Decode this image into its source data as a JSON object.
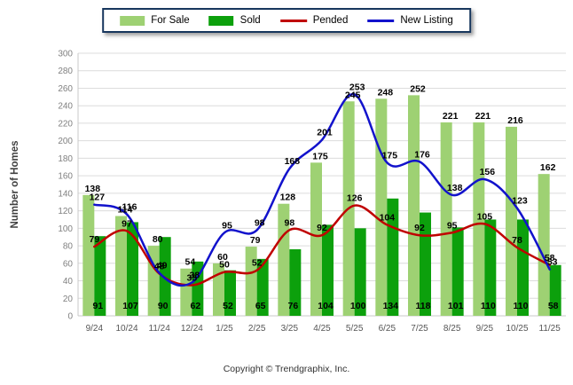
{
  "legend": {
    "items": [
      {
        "label": "For Sale",
        "type": "swatch",
        "color": "#9ed173"
      },
      {
        "label": "Sold",
        "type": "swatch",
        "color": "#0ca00c"
      },
      {
        "label": "Pended",
        "type": "line",
        "color": "#c00000"
      },
      {
        "label": "New Listing",
        "type": "line",
        "color": "#1212cc"
      }
    ]
  },
  "y_axis_title": "Number of Homes",
  "footer": "Copyright © Trendgraphix, Inc.",
  "colors": {
    "for_sale_bar": "#9ed173",
    "sold_bar": "#0ca00c",
    "pended_line": "#c00000",
    "new_listing_line": "#1212cc",
    "gridline": "#dcdcdc",
    "axis_line": "#c8c8c8",
    "y_tick_label": "#808080",
    "x_tick_label": "#555555",
    "data_label": "#000000"
  },
  "chart_data": {
    "type": "bar",
    "subtype": "grouped-bars-with-smooth-lines",
    "title": "",
    "xlabel": "",
    "ylabel": "Number of Homes",
    "ylim": [
      0,
      300
    ],
    "ytick_step": 20,
    "grid": true,
    "legend_position": "top-center",
    "categories": [
      "9/24",
      "10/24",
      "11/24",
      "12/24",
      "1/25",
      "2/25",
      "3/25",
      "4/25",
      "5/25",
      "6/25",
      "7/25",
      "8/25",
      "9/25",
      "10/25",
      "11/25"
    ],
    "series": [
      {
        "name": "For Sale",
        "type": "bar",
        "color": "#9ed173",
        "label_position": "above-bar",
        "values": [
          138,
          114,
          80,
          54,
          60,
          79,
          128,
          175,
          245,
          248,
          252,
          221,
          221,
          216,
          162
        ]
      },
      {
        "name": "Sold",
        "type": "bar",
        "color": "#0ca00c",
        "label_position": "inside-bar-bottom",
        "values": [
          91,
          107,
          90,
          62,
          52,
          65,
          76,
          104,
          100,
          134,
          118,
          101,
          110,
          110,
          58
        ]
      },
      {
        "name": "Pended",
        "type": "line",
        "color": "#c00000",
        "label_position": "above-point",
        "values": [
          79,
          97,
          48,
          35,
          50,
          52,
          98,
          92,
          126,
          104,
          92,
          95,
          105,
          78,
          58
        ]
      },
      {
        "name": "New Listing",
        "type": "line",
        "color": "#1212cc",
        "label_position": "above-point",
        "values": [
          127,
          116,
          49,
          38,
          95,
          98,
          168,
          201,
          253,
          175,
          176,
          138,
          156,
          123,
          53
        ]
      }
    ]
  }
}
